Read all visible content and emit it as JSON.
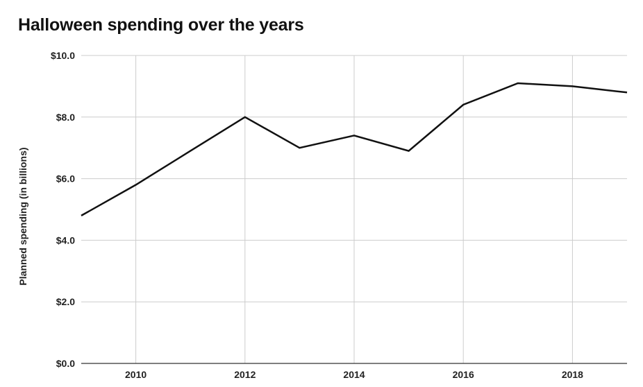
{
  "chart_data": {
    "type": "line",
    "title": "Halloween spending over the years",
    "xlabel": "",
    "ylabel": "Planned spending (in billions)",
    "xlim": [
      2009,
      2019
    ],
    "ylim": [
      0,
      10
    ],
    "x_ticks": [
      2010,
      2012,
      2014,
      2016,
      2018
    ],
    "x_tick_labels": [
      "2010",
      "2012",
      "2014",
      "2016",
      "2018"
    ],
    "y_ticks": [
      0,
      2,
      4,
      6,
      8,
      10
    ],
    "y_tick_labels": [
      "$0.0",
      "$2.0",
      "$4.0",
      "$6.0",
      "$8.0",
      "$10.0"
    ],
    "grid": true,
    "legend": "none",
    "series": [
      {
        "color": "#111111",
        "x": [
          2009,
          2010,
          2011,
          2012,
          2013,
          2014,
          2015,
          2016,
          2017,
          2018,
          2019
        ],
        "values": [
          4.8,
          5.8,
          6.9,
          8.0,
          7.0,
          7.4,
          6.9,
          8.4,
          9.1,
          9.0,
          8.8
        ]
      }
    ]
  }
}
